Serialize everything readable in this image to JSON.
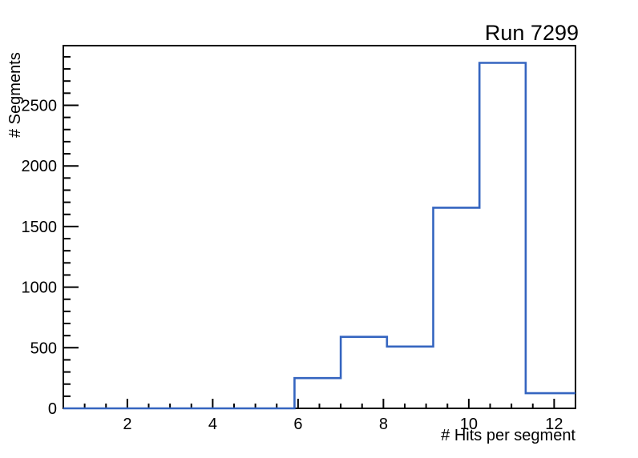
{
  "chart_data": {
    "type": "bar",
    "subtype": "step-histogram",
    "title": "Run 7299",
    "xlabel": "# Hits per segment",
    "ylabel": "# Segments",
    "xlim": [
      0.5,
      12.5
    ],
    "ylim": [
      0,
      2992
    ],
    "bin_edges": [
      0.5,
      1.5833,
      2.6667,
      3.75,
      4.8333,
      5.9167,
      7.0,
      8.0833,
      9.1667,
      10.25,
      11.3333,
      12.4167,
      13.5
    ],
    "counts": [
      0,
      0,
      0,
      0,
      0,
      250,
      590,
      510,
      1655,
      2850,
      125,
      125
    ],
    "x_major_ticks": [
      2,
      4,
      6,
      8,
      10,
      12
    ],
    "x_tick_labels": [
      "2",
      "4",
      "6",
      "8",
      "10",
      "12"
    ],
    "x_minor_step": 0.5,
    "y_major_ticks": [
      0,
      500,
      1000,
      1500,
      2000,
      2500
    ],
    "y_tick_labels": [
      "0",
      "500",
      "1000",
      "1500",
      "2000",
      "2500"
    ],
    "y_minor_step": 100,
    "grid": false,
    "legend": "none",
    "line_color": "#3565c0",
    "axis_color": "#000000",
    "background_color": "#ffffff"
  }
}
